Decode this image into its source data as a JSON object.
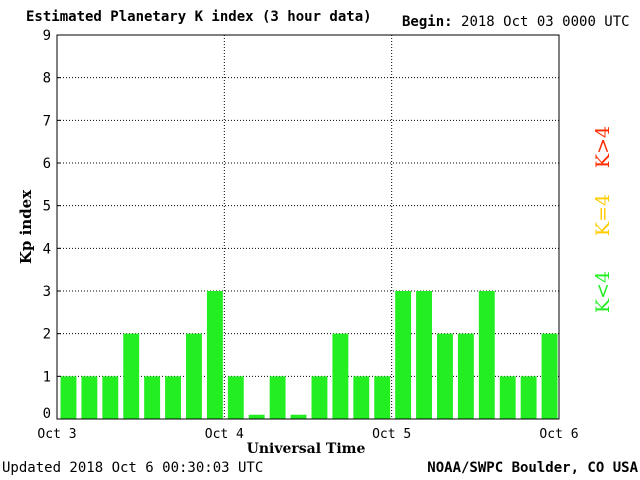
{
  "header": {
    "title": "Estimated Planetary K index (3 hour data)",
    "begin_label": "Begin:",
    "begin_value": "2018 Oct 03 0000 UTC"
  },
  "footer": {
    "updated": "Updated 2018 Oct  6 00:30:03 UTC",
    "credit": "NOAA/SWPC Boulder, CO USA"
  },
  "legend": {
    "high": {
      "label": "K>4",
      "color": "#ff2a00"
    },
    "equal": {
      "label": "K=4",
      "color": "#ffcc00"
    },
    "low": {
      "label": "K<4",
      "color": "#22ee22"
    }
  },
  "chart_data": {
    "type": "bar",
    "title": "Estimated Planetary K index (3 hour data)",
    "xlabel": "Universal Time",
    "ylabel": "Kp index",
    "ylim": [
      0,
      9
    ],
    "yticks": [
      "0",
      "1",
      "2",
      "3",
      "4",
      "5",
      "6",
      "7",
      "8",
      "9"
    ],
    "xticks": [
      "Oct 3",
      "Oct 4",
      "Oct 5",
      "Oct 6"
    ],
    "grid": true,
    "bar_color": "#22ee22",
    "categories": [
      "Oct 3 00",
      "Oct 3 03",
      "Oct 3 06",
      "Oct 3 09",
      "Oct 3 12",
      "Oct 3 15",
      "Oct 3 18",
      "Oct 3 21",
      "Oct 4 00",
      "Oct 4 03",
      "Oct 4 06",
      "Oct 4 09",
      "Oct 4 12",
      "Oct 4 15",
      "Oct 4 18",
      "Oct 4 21",
      "Oct 5 00",
      "Oct 5 03",
      "Oct 5 06",
      "Oct 5 09",
      "Oct 5 12",
      "Oct 5 15",
      "Oct 5 18",
      "Oct 5 21"
    ],
    "values": [
      1,
      1,
      1,
      2,
      1,
      1,
      2,
      3,
      1,
      0.1,
      1,
      0.1,
      1,
      2,
      1,
      1,
      3,
      3,
      2,
      2,
      3,
      1,
      1,
      2
    ]
  }
}
